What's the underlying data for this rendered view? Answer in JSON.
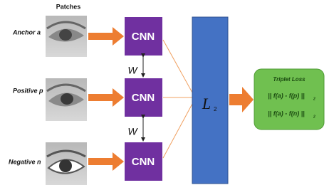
{
  "header": {
    "title": "Patches"
  },
  "inputs": [
    {
      "label": "Anchor a"
    },
    {
      "label": "Positive p"
    },
    {
      "label": "Negative n"
    }
  ],
  "networks": [
    "CNN",
    "CNN",
    "CNN"
  ],
  "weights": [
    "W",
    "W"
  ],
  "distance": {
    "symbol": "L",
    "subscript": "2"
  },
  "loss": {
    "title": "Triplet Loss",
    "formulas": [
      {
        "text": "|| f(a) - f(p) ||",
        "subscript": "2"
      },
      {
        "text": "|| f(a) - f(n) ||",
        "subscript": "2"
      }
    ]
  }
}
